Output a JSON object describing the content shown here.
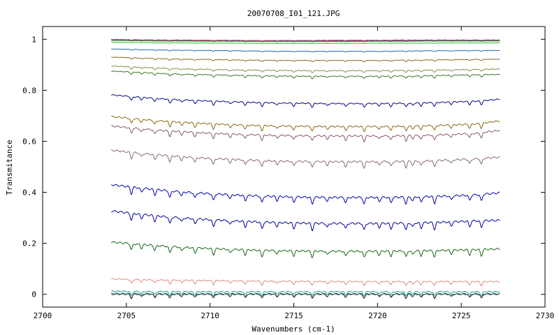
{
  "chart_data": {
    "type": "line",
    "title": "20070708_I01_121.JPG",
    "xlabel": "Wavenumbers (cm-1)",
    "ylabel": "Transmitance",
    "xlim": [
      2700,
      2730
    ],
    "ylim": [
      -0.05,
      1.05
    ],
    "x_ticks": [
      "2700",
      "2705",
      "2710",
      "2715",
      "2720",
      "2725",
      "2730"
    ],
    "y_ticks": [
      "0",
      "0.2",
      "0.4",
      "0.6",
      "0.8",
      "1"
    ],
    "grid": false,
    "legend": "none",
    "x_range": [
      2704.1,
      2727.3
    ],
    "series": [
      {
        "color": "#0000aa",
        "values": [
          0.999,
          0.998,
          0.997,
          0.997,
          0.996,
          0.996,
          0.995,
          0.995,
          0.995,
          0.996,
          0.996,
          0.996,
          0.997,
          0.997,
          0.997,
          0.997,
          0.997
        ]
      },
      {
        "color": "#dd3333",
        "values": [
          0.998,
          0.997,
          0.997,
          0.996,
          0.996,
          0.995,
          0.995,
          0.994,
          0.994,
          0.995,
          0.995,
          0.995,
          0.996,
          0.996,
          0.996,
          0.996,
          0.996
        ]
      },
      {
        "color": "#aa44aa",
        "values": [
          0.997,
          0.996,
          0.995,
          0.995,
          0.994,
          0.994,
          0.993,
          0.993,
          0.993,
          0.993,
          0.993,
          0.994,
          0.994,
          0.995,
          0.995,
          0.995,
          0.995
        ]
      },
      {
        "color": "#22aa22",
        "values": [
          0.995,
          0.994,
          0.993,
          0.993,
          0.992,
          0.992,
          0.991,
          0.991,
          0.991,
          0.991,
          0.991,
          0.992,
          0.992,
          0.993,
          0.993,
          0.993,
          0.993
        ]
      },
      {
        "color": "#33bb33",
        "values": [
          0.988,
          0.987,
          0.986,
          0.986,
          0.985,
          0.985,
          0.984,
          0.984,
          0.984,
          0.984,
          0.984,
          0.985,
          0.985,
          0.985,
          0.986,
          0.986,
          0.986
        ]
      },
      {
        "color": "#2266aa",
        "values": [
          0.962,
          0.96,
          0.958,
          0.957,
          0.956,
          0.955,
          0.954,
          0.953,
          0.953,
          0.953,
          0.953,
          0.953,
          0.954,
          0.955,
          0.955,
          0.956,
          0.956
        ]
      },
      {
        "color": "#886622",
        "values": [
          0.93,
          0.927,
          0.924,
          0.922,
          0.921,
          0.919,
          0.918,
          0.917,
          0.917,
          0.917,
          0.917,
          0.917,
          0.918,
          0.919,
          0.92,
          0.921,
          0.922
        ]
      },
      {
        "color": "#888844",
        "values": [
          0.895,
          0.891,
          0.887,
          0.884,
          0.882,
          0.88,
          0.879,
          0.878,
          0.877,
          0.877,
          0.877,
          0.877,
          0.878,
          0.879,
          0.88,
          0.882,
          0.883
        ]
      },
      {
        "color": "#337722",
        "values": [
          0.875,
          0.871,
          0.866,
          0.863,
          0.861,
          0.859,
          0.857,
          0.856,
          0.855,
          0.855,
          0.855,
          0.855,
          0.856,
          0.857,
          0.859,
          0.861,
          0.862
        ]
      },
      {
        "color": "#000088",
        "values": [
          0.782,
          0.774,
          0.767,
          0.762,
          0.758,
          0.755,
          0.752,
          0.75,
          0.749,
          0.748,
          0.748,
          0.748,
          0.749,
          0.751,
          0.754,
          0.757,
          0.765
        ]
      },
      {
        "color": "#886611",
        "values": [
          0.697,
          0.688,
          0.68,
          0.674,
          0.669,
          0.665,
          0.662,
          0.66,
          0.659,
          0.658,
          0.658,
          0.658,
          0.659,
          0.661,
          0.664,
          0.668,
          0.68
        ]
      },
      {
        "color": "#885566",
        "values": [
          0.66,
          0.651,
          0.643,
          0.637,
          0.632,
          0.628,
          0.625,
          0.623,
          0.622,
          0.621,
          0.621,
          0.621,
          0.622,
          0.624,
          0.627,
          0.631,
          0.643
        ]
      },
      {
        "color": "#886677",
        "values": [
          0.565,
          0.555,
          0.546,
          0.539,
          0.533,
          0.529,
          0.525,
          0.522,
          0.521,
          0.52,
          0.52,
          0.52,
          0.521,
          0.523,
          0.527,
          0.531,
          0.538
        ]
      },
      {
        "color": "#0000aa",
        "values": [
          0.43,
          0.419,
          0.409,
          0.401,
          0.395,
          0.39,
          0.386,
          0.383,
          0.381,
          0.38,
          0.38,
          0.38,
          0.381,
          0.383,
          0.386,
          0.39,
          0.398
        ]
      },
      {
        "color": "#000099",
        "values": [
          0.327,
          0.316,
          0.306,
          0.299,
          0.293,
          0.288,
          0.284,
          0.281,
          0.279,
          0.278,
          0.278,
          0.278,
          0.279,
          0.281,
          0.284,
          0.288,
          0.29
        ]
      },
      {
        "color": "#116611",
        "values": [
          0.205,
          0.197,
          0.19,
          0.184,
          0.18,
          0.176,
          0.173,
          0.171,
          0.17,
          0.169,
          0.169,
          0.169,
          0.17,
          0.171,
          0.173,
          0.175,
          0.178
        ]
      },
      {
        "color": "#dd8888",
        "values": [
          0.06,
          0.058,
          0.056,
          0.055,
          0.054,
          0.053,
          0.052,
          0.051,
          0.051,
          0.05,
          0.05,
          0.05,
          0.05,
          0.05,
          0.05,
          0.05,
          0.05
        ]
      },
      {
        "color": "#229988",
        "values": [
          0.012,
          0.011,
          0.011,
          0.01,
          0.01,
          0.01,
          0.01,
          0.01,
          0.01,
          0.01,
          0.01,
          0.01,
          0.01,
          0.01,
          0.01,
          0.01,
          0.01
        ]
      },
      {
        "color": "#006666",
        "values": [
          0.003,
          0.003,
          0.002,
          0.002,
          0.002,
          0.002,
          0.002,
          0.002,
          0.002,
          0.002,
          0.002,
          0.002,
          0.002,
          0.002,
          0.002,
          0.002,
          0.002
        ]
      },
      {
        "color": "#444444",
        "values": [
          0.0,
          0.0,
          0.0,
          0.0,
          0.0,
          0.0,
          0.0,
          0.0,
          0.0,
          0.0,
          0.0,
          0.0,
          0.0,
          0.0,
          0.0,
          0.0,
          0.0
        ]
      }
    ],
    "absorption_lines": [
      2705.3,
      2705.9,
      2706.7,
      2707.6,
      2708.3,
      2709.1,
      2710.2,
      2711.2,
      2712.1,
      2713.1,
      2714.0,
      2715.0,
      2716.1,
      2717.0,
      2718.1,
      2719.2,
      2720.1,
      2720.8,
      2721.7,
      2722.1,
      2722.6,
      2723.4,
      2724.4,
      2725.5,
      2726.2
    ]
  }
}
